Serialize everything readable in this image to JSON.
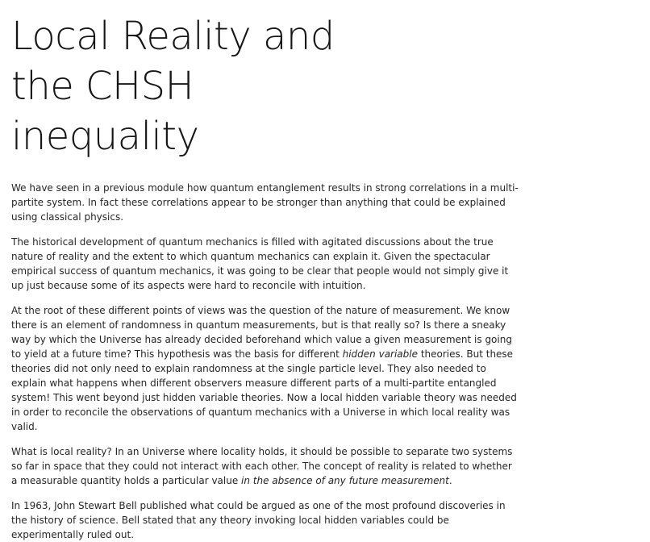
{
  "article": {
    "title_line1": "Local Reality and",
    "title_line2": "the CHSH",
    "title_line3": "inequality",
    "p1": "We have seen in a previous module how quantum entanglement results in strong correlations in a multi-partite system. In fact these correlations appear to be stronger than anything that could be explained using classical physics.",
    "p2": "The historical development of quantum mechanics is filled with agitated discussions about the true nature of reality and the extent to which quantum mechanics can explain it. Given the spectacular empirical success of quantum mechanics, it was going to be clear that people would not simply give it up just because some of its aspects were hard to reconcile with intuition.",
    "p3_a": "At the root of these different points of views was the question of the nature of measurement. We know there is an element of randomness in quantum measurements, but is that really so? Is there a sneaky way by which the Universe has already decided beforehand which value a given measurement is going to yield at a future time? This hypothesis was the basis for different ",
    "p3_em": "hidden variable",
    "p3_b": " theories. But these theories did not only need to explain randomness at the single particle level. They also needed to explain what happens when different observers measure different parts of a multi-partite entangled system! This went beyond just hidden variable theories. Now a local hidden variable theory was needed in order to reconcile the observations of quantum mechanics with a Universe in which local reality was valid.",
    "p4_a": "What is local reality? In an Universe where locality holds, it should be possible to separate two systems so far in space that they could not interact with each other. The concept of reality is related to whether a measurable quantity holds a particular value ",
    "p4_em": "in the absence of any future measurement",
    "p4_b": ".",
    "p5": "In 1963, John Stewart Bell published what could be argued as one of the most profound discoveries in the history of science. Bell stated that any theory invoking local hidden variables could be experimentally ruled out."
  }
}
